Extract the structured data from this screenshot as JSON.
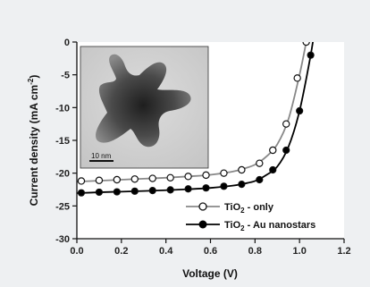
{
  "chart_data": {
    "type": "line",
    "title": "",
    "xlabel": "Voltage (V)",
    "ylabel_main": "Current density (mA cm",
    "ylabel_sup": "-2",
    "ylabel_tail": ")",
    "xlim": [
      0.0,
      1.2
    ],
    "ylim": [
      -30,
      0
    ],
    "xticks": [
      0.0,
      0.2,
      0.4,
      0.6,
      0.8,
      1.0,
      1.2
    ],
    "xtick_labels": [
      "0.0",
      "0.2",
      "0.4",
      "0.6",
      "0.8",
      "1.0",
      "1.2"
    ],
    "yticks": [
      0,
      -5,
      -10,
      -15,
      -20,
      -25,
      -30
    ],
    "ytick_labels": [
      "0",
      "-5",
      "-10",
      "-15",
      "-20",
      "-25",
      "-30"
    ],
    "grid": false,
    "legend_position": "bottom-right",
    "series": [
      {
        "name_main": "TiO",
        "name_sub": "2",
        "name_tail": " - only",
        "marker": "open-circle",
        "color": "#888888",
        "x": [
          0.02,
          0.1,
          0.18,
          0.26,
          0.34,
          0.42,
          0.5,
          0.58,
          0.66,
          0.74,
          0.82,
          0.88,
          0.94,
          0.99,
          1.03
        ],
        "y": [
          -21.2,
          -21.1,
          -21.0,
          -20.9,
          -20.8,
          -20.7,
          -20.5,
          -20.3,
          -20.0,
          -19.5,
          -18.5,
          -16.5,
          -12.5,
          -5.5,
          0.0
        ],
        "curve_x": [
          0.0,
          0.1,
          0.2,
          0.3,
          0.4,
          0.5,
          0.6,
          0.7,
          0.75,
          0.8,
          0.85,
          0.9,
          0.95,
          1.0,
          1.03,
          1.05
        ],
        "curve_y": [
          -21.3,
          -21.15,
          -21.0,
          -20.85,
          -20.7,
          -20.5,
          -20.25,
          -19.75,
          -19.3,
          -18.7,
          -17.5,
          -15.6,
          -11.8,
          -5.0,
          0.0,
          3.5
        ]
      },
      {
        "name_main": "TiO",
        "name_sub": "2",
        "name_tail": " - Au nanostars",
        "marker": "filled-circle",
        "color": "#000000",
        "x": [
          0.02,
          0.1,
          0.18,
          0.26,
          0.34,
          0.42,
          0.5,
          0.58,
          0.66,
          0.74,
          0.82,
          0.88,
          0.94,
          1.0,
          1.05
        ],
        "y": [
          -23.0,
          -22.9,
          -22.85,
          -22.75,
          -22.65,
          -22.55,
          -22.4,
          -22.25,
          -22.0,
          -21.7,
          -21.0,
          -19.5,
          -16.5,
          -10.5,
          -2.0
        ],
        "curve_x": [
          0.0,
          0.1,
          0.2,
          0.3,
          0.4,
          0.5,
          0.6,
          0.7,
          0.75,
          0.8,
          0.85,
          0.9,
          0.95,
          1.0,
          1.05,
          1.07
        ],
        "curve_y": [
          -23.05,
          -22.92,
          -22.82,
          -22.72,
          -22.6,
          -22.45,
          -22.25,
          -21.9,
          -21.6,
          -21.2,
          -20.3,
          -19.0,
          -16.0,
          -10.5,
          -2.0,
          2.5
        ]
      }
    ],
    "inset": {
      "kind": "TEM micrograph",
      "scale_bar_label": "10 nm"
    }
  }
}
